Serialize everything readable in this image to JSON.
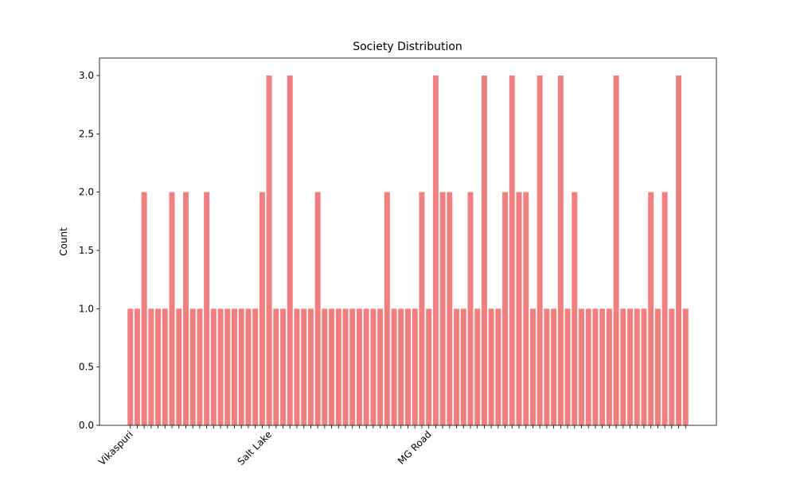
{
  "chart_data": {
    "type": "bar",
    "title": "Society Distribution",
    "y_label": "Count",
    "categories": [
      "Vikaspuri",
      null,
      null,
      null,
      null,
      null,
      null,
      null,
      null,
      null,
      null,
      null,
      null,
      null,
      null,
      null,
      null,
      null,
      null,
      null,
      "Salt Lake",
      null,
      null,
      null,
      null,
      null,
      null,
      null,
      null,
      null,
      null,
      null,
      null,
      null,
      null,
      null,
      null,
      null,
      null,
      null,
      null,
      null,
      null,
      "MG Road",
      null,
      null,
      null,
      null,
      null,
      null,
      null,
      null,
      null,
      null,
      null,
      null,
      null,
      null,
      null,
      null,
      null,
      null,
      null,
      null,
      null,
      null,
      null,
      null,
      null,
      null,
      null,
      null,
      null,
      null,
      null,
      null,
      null,
      null,
      null,
      null,
      null
    ],
    "values": [
      1,
      1,
      2,
      1,
      1,
      1,
      2,
      1,
      2,
      1,
      1,
      2,
      1,
      1,
      1,
      1,
      1,
      1,
      1,
      2,
      3,
      1,
      1,
      3,
      1,
      1,
      1,
      2,
      1,
      1,
      1,
      1,
      1,
      1,
      1,
      1,
      1,
      2,
      1,
      1,
      1,
      1,
      2,
      1,
      3,
      2,
      2,
      1,
      1,
      2,
      1,
      3,
      1,
      1,
      2,
      3,
      2,
      2,
      1,
      3,
      1,
      1,
      3,
      1,
      2,
      1,
      1,
      1,
      1,
      1,
      3,
      1,
      1,
      1,
      1,
      2,
      1,
      2,
      1,
      3,
      1
    ],
    "color": "#f08080",
    "ylim": [
      0,
      3.15
    ],
    "yticks": [
      {
        "value": 0,
        "label": "0.0"
      },
      {
        "value": 0.5,
        "label": "0.5"
      },
      {
        "value": 1,
        "label": "1.0"
      },
      {
        "value": 1.5,
        "label": "1.5"
      },
      {
        "value": 2,
        "label": "2.0"
      },
      {
        "value": 2.5,
        "label": "2.5"
      },
      {
        "value": 3,
        "label": "3.0"
      }
    ],
    "grid": false
  }
}
